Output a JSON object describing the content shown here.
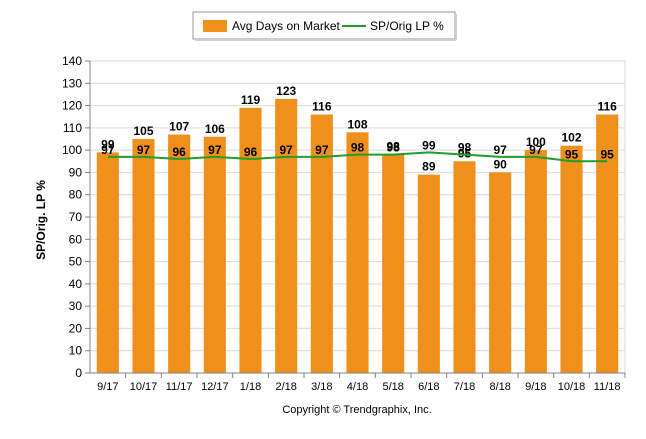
{
  "chart_data": {
    "type": "bar",
    "categories": [
      "9/17",
      "10/17",
      "11/17",
      "12/17",
      "1/18",
      "2/18",
      "3/18",
      "4/18",
      "5/18",
      "6/18",
      "7/18",
      "8/18",
      "9/18",
      "10/18",
      "11/18"
    ],
    "series": [
      {
        "name": "Avg Days on Market",
        "type": "bar",
        "color": "#F0901C",
        "values": [
          99,
          105,
          107,
          106,
          119,
          123,
          116,
          108,
          98,
          89,
          95,
          90,
          100,
          102,
          116
        ]
      },
      {
        "name": "SP/Orig LP %",
        "type": "line",
        "color": "#1E9E2A",
        "values": [
          97,
          97,
          96,
          97,
          96,
          97,
          97,
          98,
          98,
          99,
          98,
          97,
          97,
          95,
          95
        ]
      }
    ],
    "ylabel": "SP/Orig. LP %",
    "ylim": [
      0,
      140
    ],
    "yticks": [
      0,
      10,
      20,
      30,
      40,
      50,
      60,
      70,
      80,
      90,
      100,
      110,
      120,
      130,
      140
    ],
    "grid": true,
    "legend": "top-center"
  },
  "footer": {
    "copyright": "Copyright © Trendgraphix, Inc."
  }
}
